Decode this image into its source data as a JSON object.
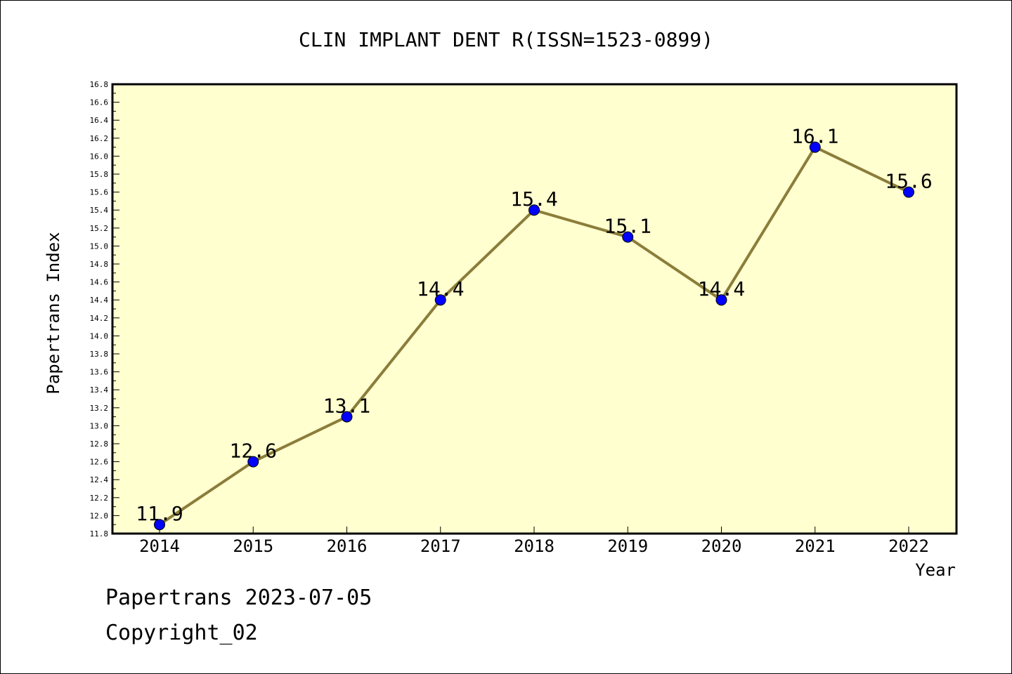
{
  "chart_data": {
    "type": "line",
    "title": "CLIN IMPLANT DENT R(ISSN=1523-0899)",
    "xlabel": "Year",
    "ylabel": "Papertrans Index",
    "categories": [
      "2014",
      "2015",
      "2016",
      "2017",
      "2018",
      "2019",
      "2020",
      "2021",
      "2022"
    ],
    "series": [
      {
        "values": [
          11.9,
          12.6,
          13.1,
          14.4,
          15.4,
          15.1,
          14.4,
          16.1,
          15.6
        ]
      }
    ],
    "data_labels": [
      "11.9",
      "12.6",
      "13.1",
      "14.4",
      "15.4",
      "15.1",
      "14.4",
      "16.1",
      "15.6"
    ],
    "ylim": [
      11.8,
      16.8
    ],
    "yticks": [
      "11.8",
      "12.0",
      "12.2",
      "12.4",
      "12.6",
      "12.8",
      "13.0",
      "13.2",
      "13.4",
      "13.6",
      "13.8",
      "14.0",
      "14.2",
      "14.4",
      "14.6",
      "14.8",
      "15.0",
      "15.2",
      "15.4",
      "15.6",
      "15.8",
      "16.0",
      "16.2",
      "16.4",
      "16.6",
      "16.8"
    ],
    "grid": false,
    "colors": {
      "plot_background": "#ffffd0",
      "line": "#8b7d3a",
      "marker": "#0000ff"
    }
  },
  "footer": {
    "line1": "Papertrans 2023-07-05",
    "line2": "Copyright_02"
  }
}
